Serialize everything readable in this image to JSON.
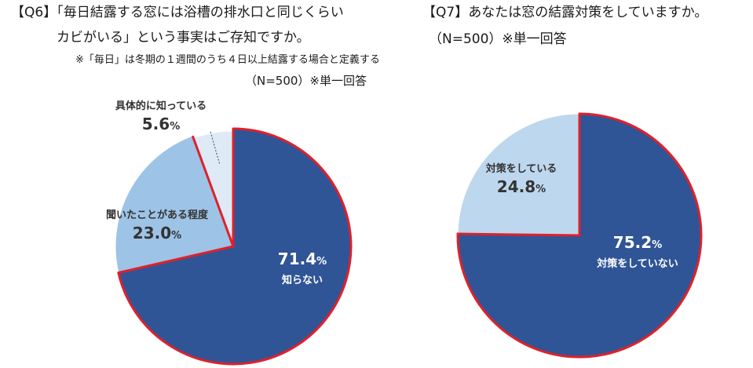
{
  "left_panel": {
    "title_line1": "【Q6】「毎日結露する窓には浴槽の排水口と同じくらい",
    "title_line2": "カビがいる」という事実はご存知ですか。",
    "note": "※「毎日」は冬期の１週間のうち４日以上結露する場合と定義する",
    "sample": "（N=500）※単一回答"
  },
  "right_panel": {
    "title_line1": "【Q7】あなたは窓の結露対策をしていますか。",
    "sample": "（N=500）※単一回答"
  },
  "chart_data": [
    {
      "type": "pie",
      "title": "",
      "slices": [
        {
          "label": "知らない",
          "value": 71.4,
          "display": "71.4",
          "unit": "%",
          "color": "#2f5597"
        },
        {
          "label": "聞いたことがある程度",
          "value": 23.0,
          "display": "23.0",
          "unit": "%",
          "color": "#9dc3e6"
        },
        {
          "label": "具体的に知っている",
          "value": 5.6,
          "display": "5.6",
          "unit": "%",
          "color": "#deebf7"
        }
      ],
      "start": "12 o'clock",
      "direction": "clockwise",
      "outline_color": "#e0202a"
    },
    {
      "type": "pie",
      "title": "",
      "slices": [
        {
          "label": "対策をしていない",
          "value": 75.2,
          "display": "75.2",
          "unit": "%",
          "color": "#2f5597"
        },
        {
          "label": "対策をしている",
          "value": 24.8,
          "display": "24.8",
          "unit": "%",
          "color": "#bdd7ee"
        }
      ],
      "start": "12 o'clock",
      "direction": "clockwise",
      "outline_color": "#e0202a"
    }
  ]
}
